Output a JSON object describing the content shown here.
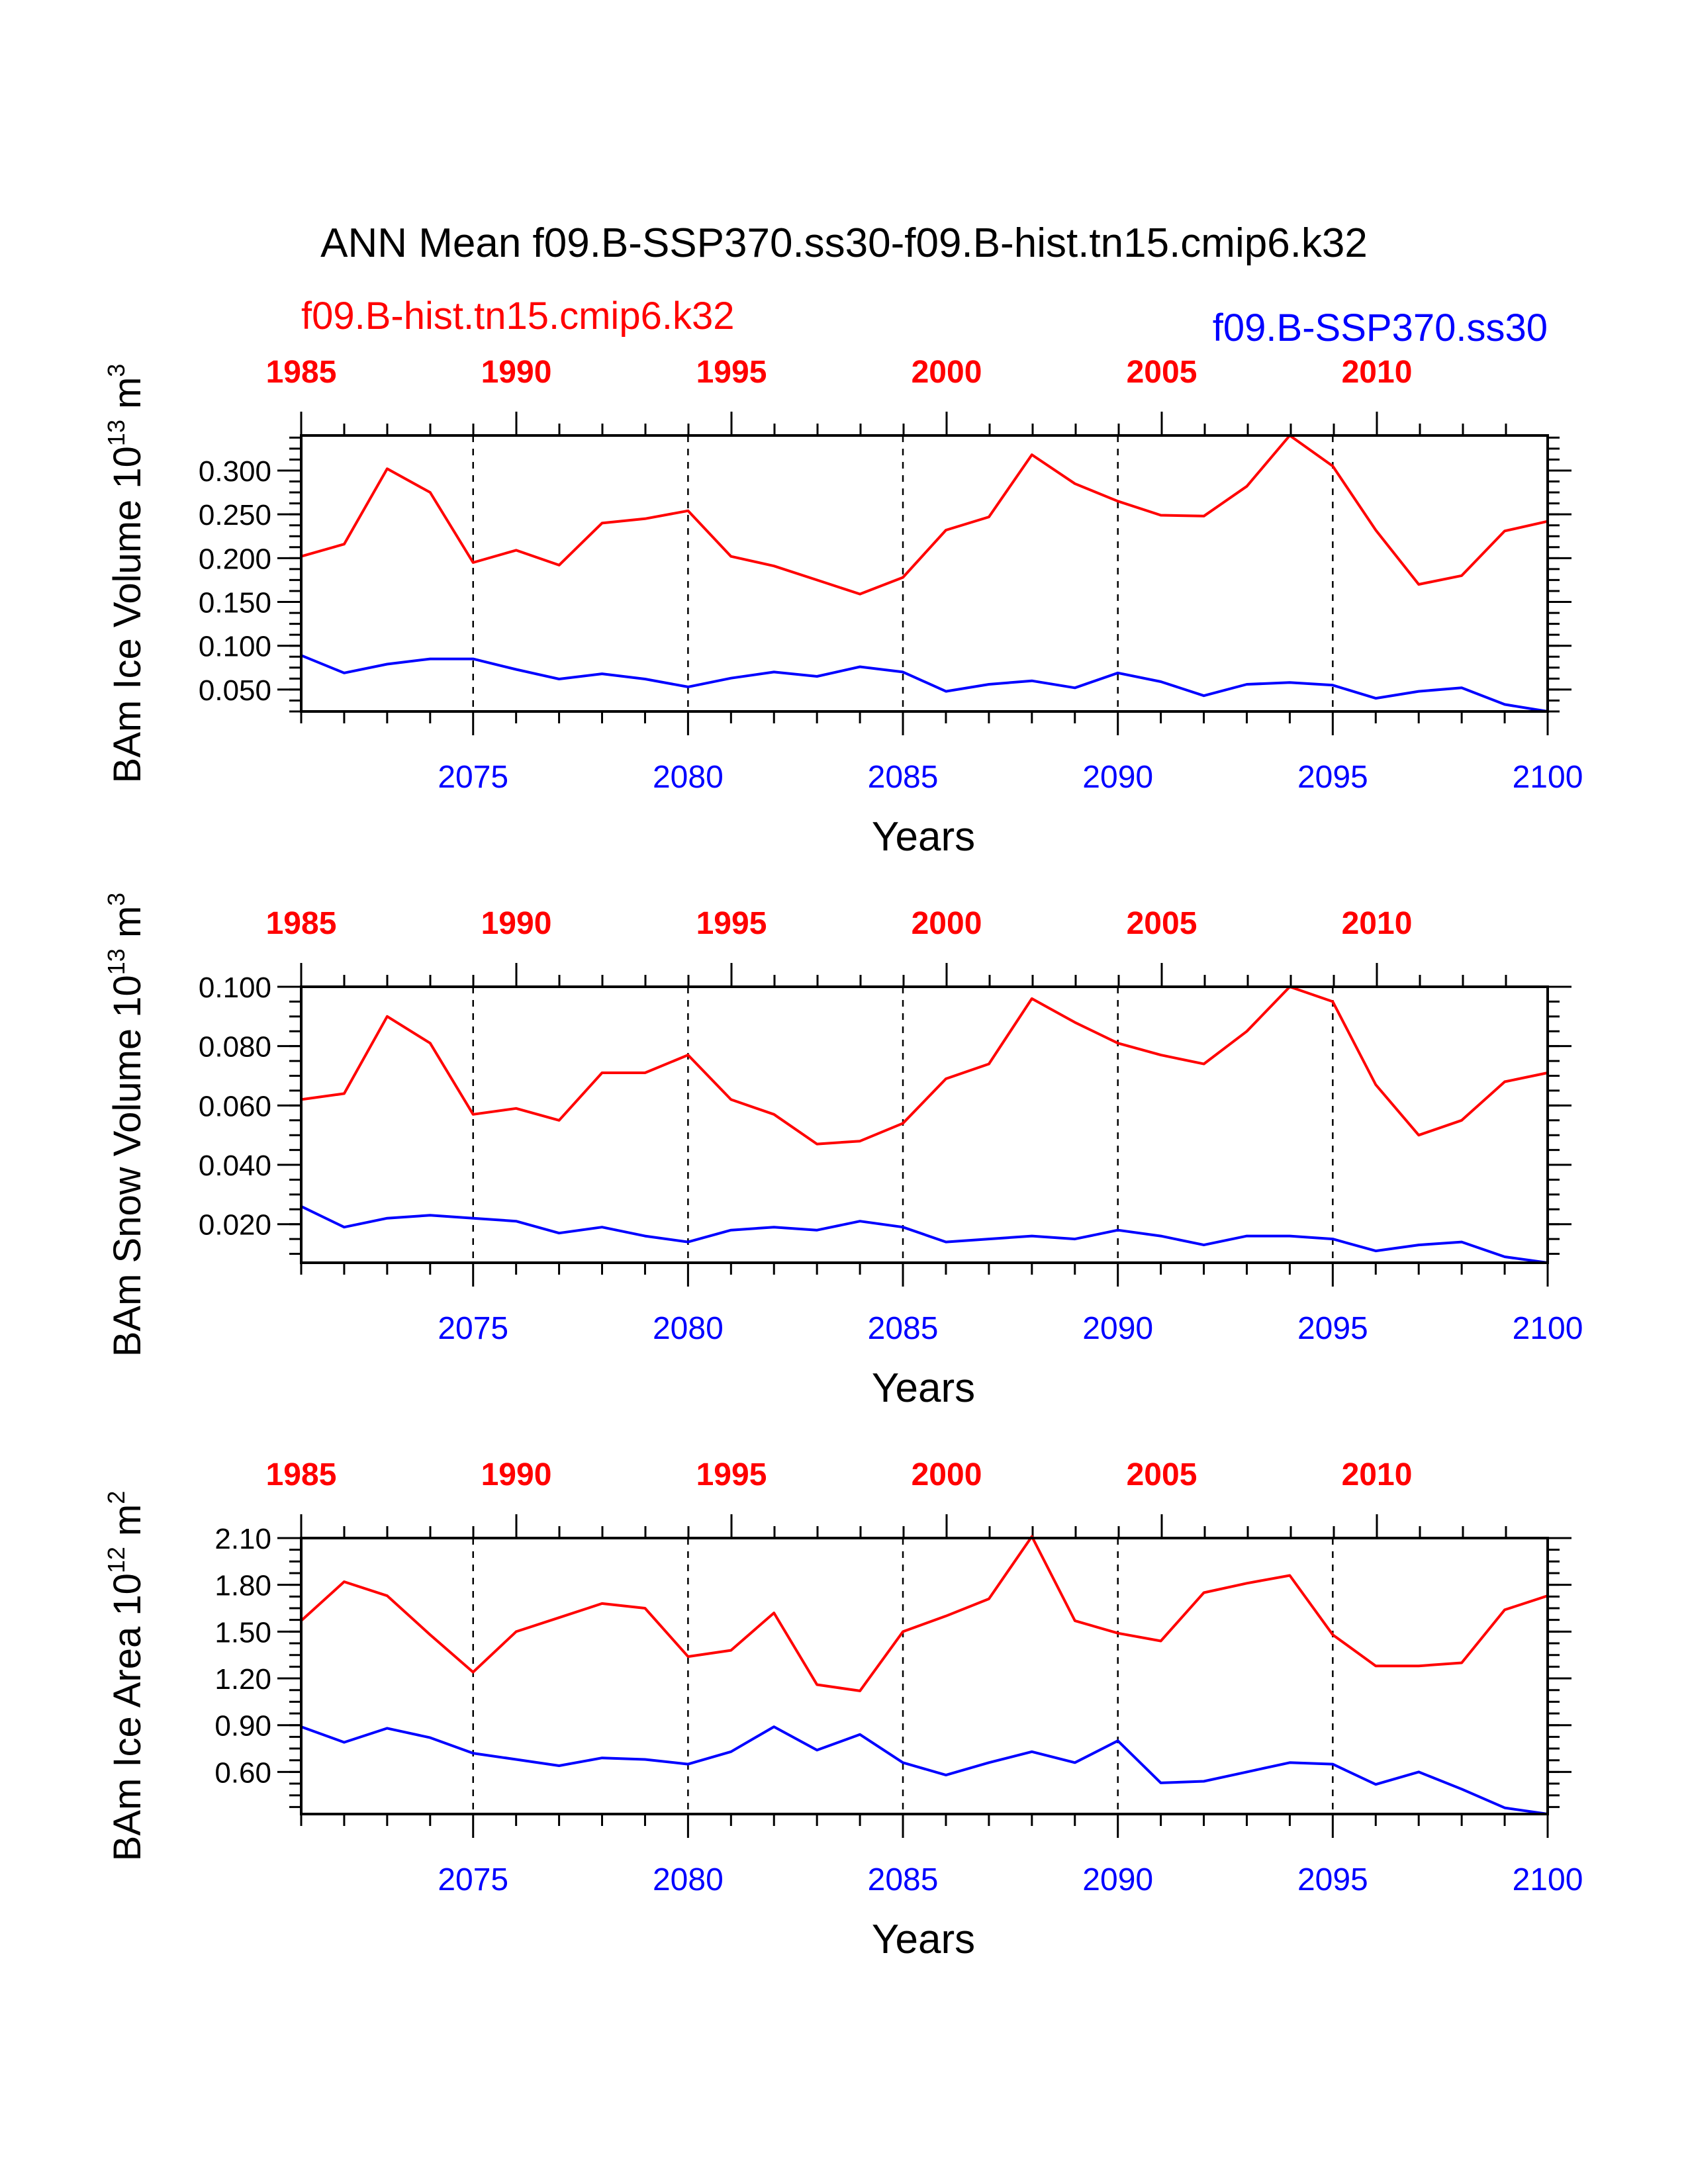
{
  "title": "ANN Mean f09.B-SSP370.ss30-f09.B-hist.tn15.cmip6.k32",
  "legend": {
    "hist": "f09.B-hist.tn15.cmip6.k32",
    "ssp": "f09.B-SSP370.ss30"
  },
  "colors": {
    "hist": "#ff0000",
    "ssp": "#0000ff"
  },
  "chart_data": [
    {
      "type": "line",
      "ylabel": "BAm Ice Volume 10",
      "ylabel_exp": "13",
      "ylabel_unit": " m",
      "ylabel_unit_exp": "3",
      "xlabel": "Years",
      "bottom_ticks": [
        "2075",
        "2080",
        "2085",
        "2090",
        "2095",
        "2100"
      ],
      "top_ticks": [
        "1985",
        "1990",
        "1995",
        "2000",
        "2005",
        "2010"
      ],
      "ytick_labels": [
        "0.050",
        "0.100",
        "0.150",
        "0.200",
        "0.250",
        "0.300"
      ],
      "yticks": [
        0.05,
        0.1,
        0.15,
        0.2,
        0.25,
        0.3
      ],
      "yminor": 0.0125,
      "ylim": [
        0.025,
        0.34
      ],
      "xlim": [
        2071,
        2100
      ],
      "x_ssp": [
        2071,
        2072,
        2073,
        2074,
        2075,
        2076,
        2077,
        2078,
        2079,
        2080,
        2081,
        2082,
        2083,
        2084,
        2085,
        2086,
        2087,
        2088,
        2089,
        2090,
        2091,
        2092,
        2093,
        2094,
        2095,
        2096,
        2097,
        2098,
        2099,
        2100
      ],
      "series": [
        {
          "name": "f09.B-hist.tn15.cmip6.k32",
          "color": "#ff0000",
          "values": [
            0.202,
            0.216,
            0.302,
            0.275,
            0.195,
            0.209,
            0.192,
            0.24,
            0.245,
            0.254,
            0.202,
            0.191,
            0.175,
            0.159,
            0.178,
            0.232,
            0.247,
            0.318,
            0.285,
            0.265,
            0.249,
            0.248,
            0.282,
            0.34,
            0.305,
            0.232,
            0.17,
            0.18,
            0.231,
            0.242
          ]
        },
        {
          "name": "f09.B-SSP370.ss30",
          "color": "#0000ff",
          "values": [
            0.089,
            0.069,
            0.079,
            0.085,
            0.085,
            0.073,
            0.062,
            0.068,
            0.062,
            0.053,
            0.063,
            0.07,
            0.065,
            0.076,
            0.07,
            0.048,
            0.056,
            0.06,
            0.052,
            0.069,
            0.059,
            0.043,
            0.056,
            0.058,
            0.055,
            0.04,
            0.048,
            0.052,
            0.033,
            0.025
          ]
        }
      ]
    },
    {
      "type": "line",
      "ylabel": "BAm Snow Volume 10",
      "ylabel_exp": "13",
      "ylabel_unit": " m",
      "ylabel_unit_exp": "3",
      "xlabel": "Years",
      "bottom_ticks": [
        "2075",
        "2080",
        "2085",
        "2090",
        "2095",
        "2100"
      ],
      "top_ticks": [
        "1985",
        "1990",
        "1995",
        "2000",
        "2005",
        "2010"
      ],
      "ytick_labels": [
        "0.020",
        "0.040",
        "0.060",
        "0.080",
        "0.100"
      ],
      "yticks": [
        0.02,
        0.04,
        0.06,
        0.08,
        0.1
      ],
      "yminor": 0.005,
      "ylim": [
        0.007,
        0.1
      ],
      "xlim": [
        2071,
        2100
      ],
      "x_ssp": [
        2071,
        2072,
        2073,
        2074,
        2075,
        2076,
        2077,
        2078,
        2079,
        2080,
        2081,
        2082,
        2083,
        2084,
        2085,
        2086,
        2087,
        2088,
        2089,
        2090,
        2091,
        2092,
        2093,
        2094,
        2095,
        2096,
        2097,
        2098,
        2099,
        2100
      ],
      "series": [
        {
          "name": "f09.B-hist.tn15.cmip6.k32",
          "color": "#ff0000",
          "values": [
            0.062,
            0.064,
            0.09,
            0.081,
            0.057,
            0.059,
            0.055,
            0.071,
            0.071,
            0.077,
            0.062,
            0.057,
            0.047,
            0.048,
            0.054,
            0.069,
            0.074,
            0.096,
            0.088,
            0.081,
            0.077,
            0.074,
            0.085,
            0.1,
            0.095,
            0.067,
            0.05,
            0.055,
            0.068,
            0.071
          ]
        },
        {
          "name": "f09.B-SSP370.ss30",
          "color": "#0000ff",
          "values": [
            0.026,
            0.019,
            0.022,
            0.023,
            0.022,
            0.021,
            0.017,
            0.019,
            0.016,
            0.014,
            0.018,
            0.019,
            0.018,
            0.021,
            0.019,
            0.014,
            0.015,
            0.016,
            0.015,
            0.018,
            0.016,
            0.013,
            0.016,
            0.016,
            0.015,
            0.011,
            0.013,
            0.014,
            0.009,
            0.007
          ]
        }
      ]
    },
    {
      "type": "line",
      "ylabel": "BAm Ice Area 10",
      "ylabel_exp": "12",
      "ylabel_unit": " m",
      "ylabel_unit_exp": "2",
      "xlabel": "Years",
      "bottom_ticks": [
        "2075",
        "2080",
        "2085",
        "2090",
        "2095",
        "2100"
      ],
      "top_ticks": [
        "1985",
        "1990",
        "1995",
        "2000",
        "2005",
        "2010"
      ],
      "ytick_labels": [
        "0.60",
        "0.90",
        "1.20",
        "1.50",
        "1.80",
        "2.10"
      ],
      "yticks": [
        0.6,
        0.9,
        1.2,
        1.5,
        1.8,
        2.1
      ],
      "yminor": 0.075,
      "ylim": [
        0.33,
        2.1
      ],
      "xlim": [
        2071,
        2100
      ],
      "x_ssp": [
        2071,
        2072,
        2073,
        2074,
        2075,
        2076,
        2077,
        2078,
        2079,
        2080,
        2081,
        2082,
        2083,
        2084,
        2085,
        2086,
        2087,
        2088,
        2089,
        2090,
        2091,
        2092,
        2093,
        2094,
        2095,
        2096,
        2097,
        2098,
        2099,
        2100
      ],
      "series": [
        {
          "name": "f09.B-hist.tn15.cmip6.k32",
          "color": "#ff0000",
          "values": [
            1.57,
            1.82,
            1.73,
            1.48,
            1.24,
            1.5,
            1.59,
            1.68,
            1.65,
            1.34,
            1.38,
            1.62,
            1.16,
            1.12,
            1.5,
            1.6,
            1.71,
            2.11,
            1.57,
            1.49,
            1.44,
            1.75,
            1.81,
            1.86,
            1.48,
            1.28,
            1.28,
            1.3,
            1.64,
            1.73
          ]
        },
        {
          "name": "f09.B-SSP370.ss30",
          "color": "#0000ff",
          "values": [
            0.89,
            0.79,
            0.88,
            0.82,
            0.72,
            0.68,
            0.64,
            0.69,
            0.68,
            0.65,
            0.73,
            0.89,
            0.74,
            0.84,
            0.66,
            0.58,
            0.66,
            0.73,
            0.66,
            0.8,
            0.53,
            0.54,
            0.6,
            0.66,
            0.65,
            0.52,
            0.6,
            0.49,
            0.37,
            0.33
          ]
        }
      ]
    }
  ]
}
